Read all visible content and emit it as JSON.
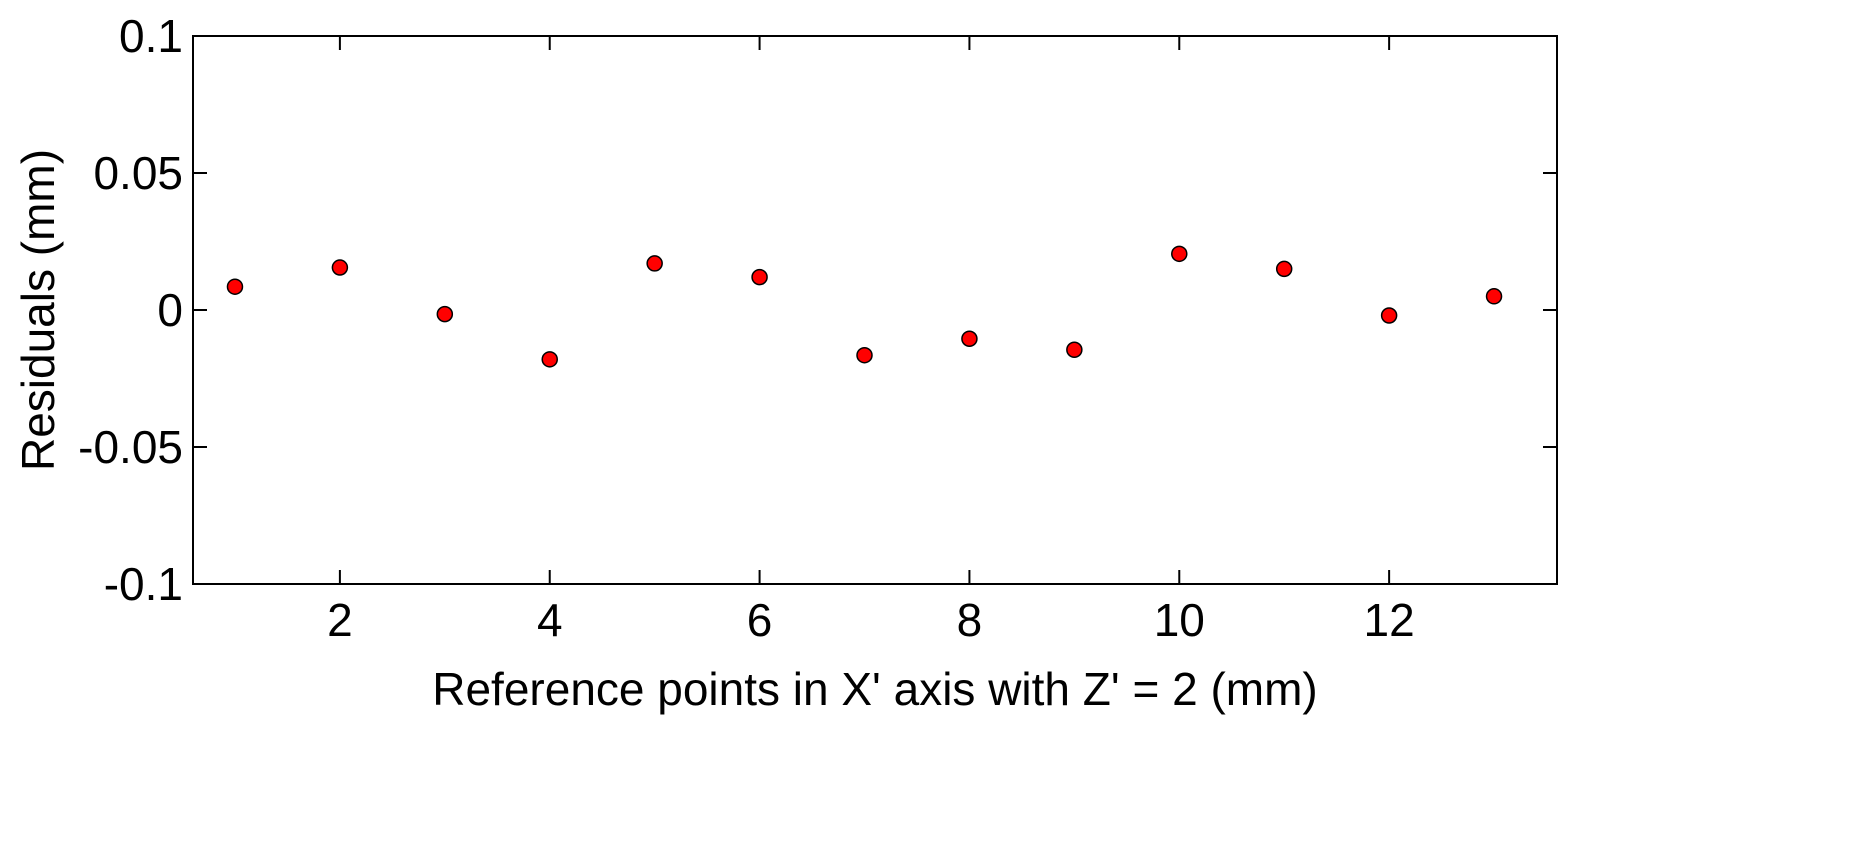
{
  "chart_data": {
    "type": "scatter",
    "title": "",
    "xlabel": "Reference points in X' axis with Z' = 2 (mm)",
    "ylabel": "Residuals (mm)",
    "xlim": [
      0.6,
      13.6
    ],
    "ylim": [
      -0.1,
      0.1
    ],
    "x_ticks": [
      2,
      4,
      6,
      8,
      10,
      12
    ],
    "x_tick_labels": [
      "2",
      "4",
      "6",
      "8",
      "10",
      "12"
    ],
    "y_ticks": [
      0.1,
      0.05,
      0,
      -0.05,
      -0.1
    ],
    "y_tick_labels": [
      "0.1",
      "0.05",
      "0",
      "-0.05",
      "-0.1"
    ],
    "grid": false,
    "series": [
      {
        "marker_color": "#ff0000",
        "edge_color": "#000000",
        "x": [
          1,
          2,
          3,
          4,
          5,
          6,
          7,
          8,
          9,
          10,
          11,
          12,
          13
        ],
        "y": [
          0.0085,
          0.0155,
          -0.0015,
          -0.018,
          0.017,
          0.012,
          -0.0165,
          -0.0105,
          -0.0145,
          0.0205,
          0.015,
          -0.002,
          0.005
        ]
      }
    ]
  }
}
